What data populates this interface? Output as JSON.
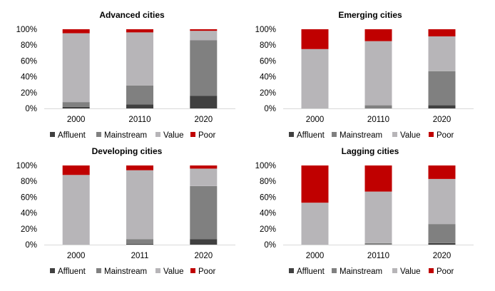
{
  "chart_data": [
    {
      "type": "bar",
      "stacked": true,
      "title": "Advanced cities",
      "categories": [
        "2000",
        "20110",
        "2020"
      ],
      "ylim": [
        0,
        100
      ],
      "yticks": [
        "0%",
        "20%",
        "40%",
        "60%",
        "80%",
        "100%"
      ],
      "series": [
        {
          "name": "Affluent",
          "color": "#404040",
          "values": [
            2,
            5,
            16
          ]
        },
        {
          "name": "Mainstream",
          "color": "#808080",
          "values": [
            6,
            24,
            70
          ]
        },
        {
          "name": "Value",
          "color": "#b7b5b8",
          "values": [
            87,
            67,
            12
          ]
        },
        {
          "name": "Poor",
          "color": "#c00000",
          "values": [
            5,
            4,
            2
          ]
        }
      ]
    },
    {
      "type": "bar",
      "stacked": true,
      "title": "Emerging cities",
      "categories": [
        "2000",
        "20110",
        "2020"
      ],
      "ylim": [
        0,
        100
      ],
      "yticks": [
        "0%",
        "20%",
        "40%",
        "60%",
        "80%",
        "100%"
      ],
      "series": [
        {
          "name": "Affluent",
          "color": "#404040",
          "values": [
            0,
            0,
            4
          ]
        },
        {
          "name": "Mainstream",
          "color": "#808080",
          "values": [
            0,
            4,
            43
          ]
        },
        {
          "name": "Value",
          "color": "#b7b5b8",
          "values": [
            75,
            81,
            44
          ]
        },
        {
          "name": "Poor",
          "color": "#c00000",
          "values": [
            25,
            15,
            9
          ]
        }
      ]
    },
    {
      "type": "bar",
      "stacked": true,
      "title": "Developing cities",
      "categories": [
        "2000",
        "2011",
        "2020"
      ],
      "ylim": [
        0,
        100
      ],
      "yticks": [
        "0%",
        "20%",
        "40%",
        "60%",
        "80%",
        "100%"
      ],
      "series": [
        {
          "name": "Affluent",
          "color": "#404040",
          "values": [
            0,
            1,
            7
          ]
        },
        {
          "name": "Mainstream",
          "color": "#808080",
          "values": [
            0,
            6,
            67
          ]
        },
        {
          "name": "Value",
          "color": "#b7b5b8",
          "values": [
            88,
            87,
            22
          ]
        },
        {
          "name": "Poor",
          "color": "#c00000",
          "values": [
            12,
            6,
            4
          ]
        }
      ]
    },
    {
      "type": "bar",
      "stacked": true,
      "title": "Lagging cities",
      "categories": [
        "2000",
        "20110",
        "2020"
      ],
      "ylim": [
        0,
        100
      ],
      "yticks": [
        "0%",
        "20%",
        "40%",
        "60%",
        "80%",
        "100%"
      ],
      "series": [
        {
          "name": "Affluent",
          "color": "#404040",
          "values": [
            0,
            0,
            2
          ]
        },
        {
          "name": "Mainstream",
          "color": "#808080",
          "values": [
            0,
            2,
            24
          ]
        },
        {
          "name": "Value",
          "color": "#b7b5b8",
          "values": [
            53,
            65,
            57
          ]
        },
        {
          "name": "Poor",
          "color": "#c00000",
          "values": [
            47,
            33,
            17
          ]
        }
      ]
    }
  ]
}
